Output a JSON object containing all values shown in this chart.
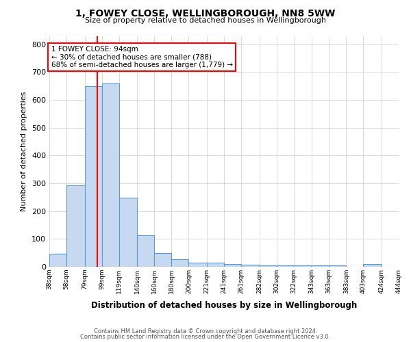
{
  "title1": "1, FOWEY CLOSE, WELLINGBOROUGH, NN8 5WW",
  "title2": "Size of property relative to detached houses in Wellingborough",
  "xlabel": "Distribution of detached houses by size in Wellingborough",
  "ylabel": "Number of detached properties",
  "bin_edges": [
    38,
    58,
    79,
    99,
    119,
    140,
    160,
    180,
    200,
    221,
    241,
    261,
    282,
    302,
    322,
    343,
    363,
    383,
    403,
    424,
    444
  ],
  "bar_heights": [
    47,
    293,
    650,
    660,
    248,
    113,
    50,
    28,
    14,
    14,
    10,
    7,
    5,
    4,
    6,
    5,
    5,
    0,
    10,
    0
  ],
  "bar_color": "#c6d9f1",
  "bar_edge_color": "#5b9bd5",
  "red_line_x": 94,
  "annotation_line1": "1 FOWEY CLOSE: 94sqm",
  "annotation_line2": "← 30% of detached houses are smaller (788)",
  "annotation_line3": "68% of semi-detached houses are larger (1,779) →",
  "annotation_box_color": "#ffffff",
  "annotation_box_edge_color": "#ff0000",
  "ylim": [
    0,
    830
  ],
  "yticks": [
    0,
    100,
    200,
    300,
    400,
    500,
    600,
    700,
    800
  ],
  "footer_line1": "Contains HM Land Registry data © Crown copyright and database right 2024.",
  "footer_line2": "Contains public sector information licensed under the Open Government Licence v3.0.",
  "background_color": "#ffffff",
  "grid_color": "#cccccc"
}
